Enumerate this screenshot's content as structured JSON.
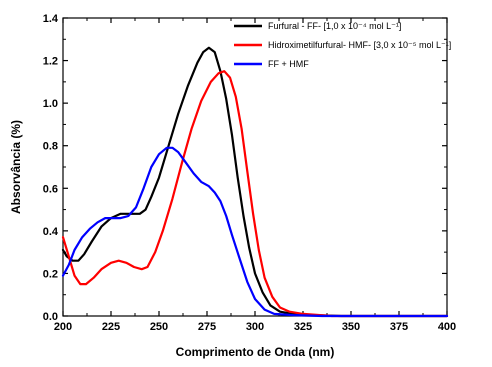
{
  "chart_data": {
    "type": "line",
    "title": "",
    "xlabel": "Comprimento de Onda (nm)",
    "ylabel": "Absorvância (%)",
    "xlim": [
      200,
      400
    ],
    "ylim": [
      0.0,
      1.4
    ],
    "x_ticks": [
      "200",
      "225",
      "250",
      "275",
      "300",
      "325",
      "350",
      "375",
      "400"
    ],
    "y_ticks": [
      "0.0",
      "0.2",
      "0.4",
      "0.6",
      "0.8",
      "1.0",
      "1.2",
      "1.4"
    ],
    "grid": false,
    "legend_position": "top-right",
    "series": [
      {
        "name": "Furfural - FF-  [1,0 x 10⁻⁴ mol L⁻¹]",
        "color": "#000000",
        "points": [
          [
            200,
            0.31
          ],
          [
            202,
            0.28
          ],
          [
            205,
            0.26
          ],
          [
            208,
            0.26
          ],
          [
            211,
            0.29
          ],
          [
            215,
            0.35
          ],
          [
            220,
            0.42
          ],
          [
            225,
            0.46
          ],
          [
            230,
            0.48
          ],
          [
            235,
            0.48
          ],
          [
            240,
            0.48
          ],
          [
            243,
            0.5
          ],
          [
            246,
            0.56
          ],
          [
            250,
            0.65
          ],
          [
            255,
            0.8
          ],
          [
            260,
            0.95
          ],
          [
            265,
            1.08
          ],
          [
            270,
            1.19
          ],
          [
            273,
            1.24
          ],
          [
            276,
            1.26
          ],
          [
            279,
            1.24
          ],
          [
            282,
            1.15
          ],
          [
            285,
            1.02
          ],
          [
            288,
            0.85
          ],
          [
            291,
            0.65
          ],
          [
            294,
            0.47
          ],
          [
            297,
            0.32
          ],
          [
            300,
            0.2
          ],
          [
            304,
            0.11
          ],
          [
            308,
            0.05
          ],
          [
            313,
            0.02
          ],
          [
            320,
            0.01
          ],
          [
            330,
            0.004
          ],
          [
            345,
            0.0
          ],
          [
            400,
            0.0
          ]
        ]
      },
      {
        "name": "Hidroximetilfurfural- HMF- [3,0 x 10⁻⁵ mol L⁻¹]",
        "color": "#ff0000",
        "points": [
          [
            200,
            0.37
          ],
          [
            203,
            0.28
          ],
          [
            206,
            0.19
          ],
          [
            209,
            0.15
          ],
          [
            212,
            0.15
          ],
          [
            216,
            0.18
          ],
          [
            220,
            0.22
          ],
          [
            225,
            0.25
          ],
          [
            229,
            0.26
          ],
          [
            233,
            0.25
          ],
          [
            237,
            0.23
          ],
          [
            241,
            0.22
          ],
          [
            244,
            0.23
          ],
          [
            248,
            0.3
          ],
          [
            252,
            0.4
          ],
          [
            257,
            0.55
          ],
          [
            262,
            0.72
          ],
          [
            267,
            0.88
          ],
          [
            272,
            1.01
          ],
          [
            277,
            1.1
          ],
          [
            281,
            1.14
          ],
          [
            284,
            1.15
          ],
          [
            287,
            1.12
          ],
          [
            290,
            1.03
          ],
          [
            293,
            0.88
          ],
          [
            296,
            0.68
          ],
          [
            299,
            0.48
          ],
          [
            302,
            0.31
          ],
          [
            305,
            0.18
          ],
          [
            309,
            0.09
          ],
          [
            313,
            0.04
          ],
          [
            318,
            0.02
          ],
          [
            325,
            0.01
          ],
          [
            340,
            0.0
          ],
          [
            400,
            0.0
          ]
        ]
      },
      {
        "name": "FF + HMF",
        "color": "#0000ff",
        "points": [
          [
            200,
            0.19
          ],
          [
            203,
            0.24
          ],
          [
            206,
            0.31
          ],
          [
            210,
            0.37
          ],
          [
            214,
            0.41
          ],
          [
            218,
            0.44
          ],
          [
            222,
            0.46
          ],
          [
            226,
            0.46
          ],
          [
            230,
            0.46
          ],
          [
            234,
            0.47
          ],
          [
            238,
            0.51
          ],
          [
            242,
            0.6
          ],
          [
            246,
            0.7
          ],
          [
            250,
            0.76
          ],
          [
            254,
            0.79
          ],
          [
            257,
            0.79
          ],
          [
            260,
            0.77
          ],
          [
            264,
            0.72
          ],
          [
            268,
            0.67
          ],
          [
            272,
            0.63
          ],
          [
            276,
            0.61
          ],
          [
            279,
            0.58
          ],
          [
            282,
            0.54
          ],
          [
            285,
            0.47
          ],
          [
            288,
            0.38
          ],
          [
            292,
            0.27
          ],
          [
            296,
            0.16
          ],
          [
            300,
            0.08
          ],
          [
            305,
            0.03
          ],
          [
            310,
            0.01
          ],
          [
            320,
            0.004
          ],
          [
            335,
            0.0
          ],
          [
            400,
            0.0
          ]
        ]
      }
    ]
  }
}
